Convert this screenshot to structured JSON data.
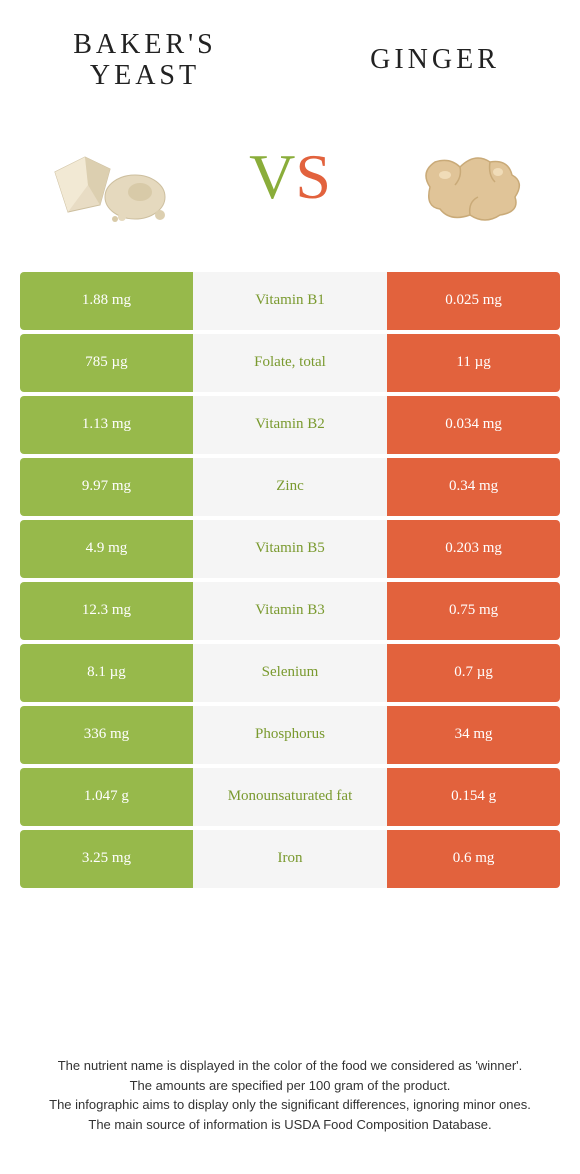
{
  "colors": {
    "left_bg": "#97b94b",
    "right_bg": "#e2623d",
    "mid_bg": "#f5f5f5",
    "left_text": "#ffffff",
    "right_text": "#ffffff",
    "mid_win_left": "#7a9a2f",
    "mid_win_right": "#c94e2a",
    "v_color": "#8aad3a",
    "s_color": "#e2623d",
    "title_color": "#222222"
  },
  "header": {
    "left_title_line1": "BAKER'S",
    "left_title_line2": "YEAST",
    "right_title": "GINGER",
    "vs_v": "V",
    "vs_s": "S"
  },
  "rows": [
    {
      "left": "1.88 mg",
      "label": "Vitamin B1",
      "right": "0.025 mg",
      "winner": "left"
    },
    {
      "left": "785 µg",
      "label": "Folate, total",
      "right": "11 µg",
      "winner": "left"
    },
    {
      "left": "1.13 mg",
      "label": "Vitamin B2",
      "right": "0.034 mg",
      "winner": "left"
    },
    {
      "left": "9.97 mg",
      "label": "Zinc",
      "right": "0.34 mg",
      "winner": "left"
    },
    {
      "left": "4.9 mg",
      "label": "Vitamin B5",
      "right": "0.203 mg",
      "winner": "left"
    },
    {
      "left": "12.3 mg",
      "label": "Vitamin B3",
      "right": "0.75 mg",
      "winner": "left"
    },
    {
      "left": "8.1 µg",
      "label": "Selenium",
      "right": "0.7 µg",
      "winner": "left"
    },
    {
      "left": "336 mg",
      "label": "Phosphorus",
      "right": "34 mg",
      "winner": "left"
    },
    {
      "left": "1.047 g",
      "label": "Monounsaturated fat",
      "right": "0.154 g",
      "winner": "left"
    },
    {
      "left": "3.25 mg",
      "label": "Iron",
      "right": "0.6 mg",
      "winner": "left"
    }
  ],
  "footer": {
    "line1": "The nutrient name is displayed in the color of the food we considered as 'winner'.",
    "line2": "The amounts are specified per 100 gram of the product.",
    "line3": "The infographic aims to display only the significant differences, ignoring minor ones.",
    "line4": "The main source of information is USDA Food Composition Database."
  }
}
